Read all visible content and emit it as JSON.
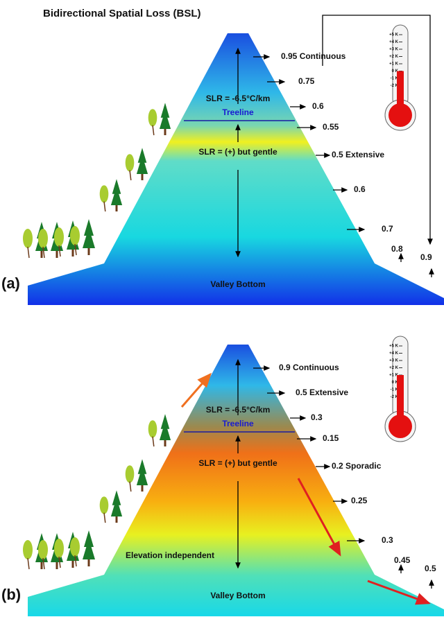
{
  "title": "Bidirectional Spatial Loss (BSL)",
  "panels": [
    {
      "label": "(a)",
      "slr_upper": "SLR = -6.5°C/km",
      "treeline": "Treeline",
      "slr_lower": "SLR = (+) but gentle",
      "valley": "Valley Bottom",
      "annotations": [
        "0.95 Continuous",
        "0.75",
        "0.6",
        "0.55",
        "0.5 Extensive",
        "0.6",
        "0.7",
        "0.8",
        "0.9"
      ],
      "thermometer_ticks": [
        "+5 K",
        "+4 K",
        "+3 K",
        "+2 K",
        "+1 K",
        "0 K",
        "-1 K",
        "-2 K"
      ]
    },
    {
      "label": "(b)",
      "slr_upper": "SLR = -6.5°C/km",
      "treeline": "Treeline",
      "slr_lower": "SLR = (+) but gentle",
      "valley": "Valley Bottom",
      "note": "Elevation independent",
      "annotations": [
        "0.9 Continuous",
        "0.5 Extensive",
        "0.3",
        "0.15",
        "0.2 Sporadic",
        "0.25",
        "0.3",
        "0.45",
        "0.5"
      ],
      "thermometer_ticks": [
        "+5 K",
        "+4 K",
        "+3 K",
        "+2 K",
        "+1 K",
        "0 K",
        "-1 K",
        "-2 K"
      ]
    }
  ]
}
